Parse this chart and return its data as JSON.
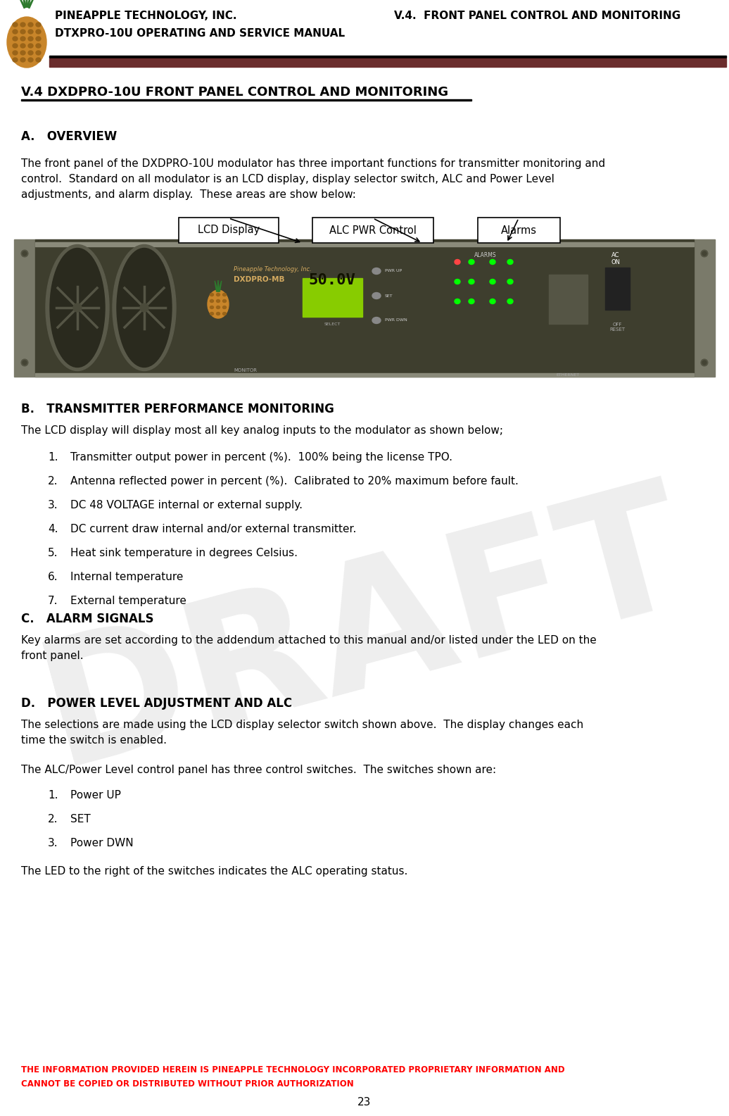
{
  "page_bg": "#ffffff",
  "header": {
    "company": "PINEAPPLE TECHNOLOGY, INC.",
    "manual": "DTXPRO-10U OPERATING AND SERVICE MANUAL",
    "section": "V.4.  FRONT PANEL CONTROL AND MONITORING",
    "bar_color": "#6B2D2D",
    "text_color": "#000000"
  },
  "title": "V.4 DXDPRO-10U FRONT PANEL CONTROL AND MONITORING",
  "sec_a_heading": "A.   OVERVIEW",
  "sec_a_body": "The front panel of the DXDPRO-10U modulator has three important functions for transmitter monitoring and\ncontrol.  Standard on all modulator is an LCD display, display selector switch, ALC and Power Level\nadjustments, and alarm display.  These areas are show below:",
  "callout_labels": [
    "LCD Display",
    "ALC PWR Control",
    "Alarms"
  ],
  "sec_b_heading": "B.   TRANSMITTER PERFORMANCE MONITORING",
  "sec_b_intro": "The LCD display will display most all key analog inputs to the modulator as shown below;",
  "sec_b_list": [
    "Transmitter output power in percent (%).  100% being the license TPO.",
    "Antenna reflected power in percent (%).  Calibrated to 20% maximum before fault.",
    "DC 48 VOLTAGE internal or external supply.",
    "DC current draw internal and/or external transmitter.",
    "Heat sink temperature in degrees Celsius.",
    "Internal temperature",
    "External temperature"
  ],
  "sec_c_heading": "C.   ALARM SIGNALS",
  "sec_c_body": "Key alarms are set according to the addendum attached to this manual and/or listed under the LED on the\nfront panel.",
  "sec_d_heading": "D.   POWER LEVEL ADJUSTMENT AND ALC",
  "sec_d_body1": "The selections are made using the LCD display selector switch shown above.  The display changes each\ntime the switch is enabled.",
  "sec_d_body2": "The ALC/Power Level control panel has three control switches.  The switches shown are:",
  "sec_d_list": [
    "Power UP",
    "SET",
    "Power DWN"
  ],
  "sec_d_body3": "The LED to the right of the switches indicates the ALC operating status.",
  "footer_text1": "THE INFORMATION PROVIDED HEREIN IS PINEAPPLE TECHNOLOGY INCORPORATED PROPRIETARY INFORMATION AND",
  "footer_text2": "CANNOT BE COPIED OR DISTRIBUTED WITHOUT PRIOR AUTHORIZATION",
  "footer_color": "#FF0000",
  "page_number": "23",
  "draft_color": "#C8C8C8",
  "draft_alpha": 0.3
}
